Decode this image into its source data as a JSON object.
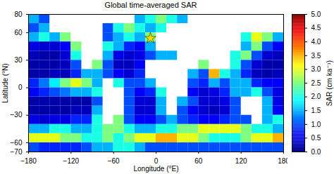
{
  "chart_data": {
    "type": "heatmap",
    "title": "Global time-averaged SAR",
    "x_label": "Longitude (°E)",
    "y_label": "Latitude (°N)",
    "xlim": [
      -180,
      180
    ],
    "ylim": [
      -70,
      80
    ],
    "xticks": [
      -180,
      -120,
      -60,
      0,
      60,
      120,
      180
    ],
    "yticks": [
      -70,
      -60,
      -30,
      0,
      30,
      60,
      80
    ],
    "lon_edges": [
      -180,
      -165,
      -150,
      -135,
      -120,
      -105,
      -90,
      -75,
      -60,
      -45,
      -30,
      -15,
      0,
      15,
      30,
      45,
      60,
      75,
      90,
      105,
      120,
      135,
      150,
      165,
      180
    ],
    "lat_edges": [
      80,
      70,
      60,
      50,
      40,
      30,
      20,
      10,
      0,
      -10,
      -20,
      -30,
      -40,
      -50,
      -60,
      -70
    ],
    "cells": [
      [
        1.5,
        1.0,
        null,
        null,
        null,
        null,
        null,
        null,
        null,
        null,
        1.5,
        2.0,
        2.5,
        2.0,
        1.5,
        null,
        null,
        null,
        null,
        null,
        null,
        null,
        null,
        null
      ],
      [
        1.0,
        1.5,
        null,
        null,
        null,
        null,
        null,
        1.0,
        2.0,
        2.5,
        2.0,
        1.5,
        2.0,
        null,
        null,
        null,
        null,
        null,
        null,
        null,
        null,
        null,
        null,
        null
      ],
      [
        1.5,
        2.0,
        1.5,
        2.5,
        null,
        null,
        null,
        1.0,
        1.5,
        2.0,
        1.5,
        2.5,
        null,
        null,
        null,
        null,
        null,
        null,
        null,
        null,
        2.0,
        3.0,
        2.5,
        1.5
      ],
      [
        0.5,
        0.4,
        0.4,
        0.6,
        2.5,
        null,
        null,
        2.0,
        1.5,
        0.8,
        0.6,
        1.5,
        null,
        null,
        null,
        null,
        null,
        null,
        null,
        null,
        1.5,
        2.5,
        1.0,
        0.6
      ],
      [
        0.3,
        0.2,
        0.2,
        0.4,
        2.0,
        null,
        null,
        1.5,
        0.5,
        0.4,
        0.5,
        1.0,
        1.5,
        1.5,
        null,
        null,
        null,
        null,
        null,
        2.0,
        2.5,
        1.0,
        0.4,
        0.3
      ],
      [
        0.2,
        0.2,
        0.2,
        0.3,
        1.0,
        null,
        2.5,
        1.0,
        0.3,
        0.3,
        0.6,
        null,
        null,
        null,
        null,
        null,
        2.5,
        null,
        null,
        2.0,
        1.0,
        0.4,
        0.2,
        0.2
      ],
      [
        0.2,
        0.2,
        0.3,
        0.3,
        0.8,
        1.5,
        1.5,
        1.0,
        0.6,
        0.4,
        0.8,
        null,
        null,
        null,
        null,
        1.5,
        1.0,
        3.5,
        2.0,
        1.5,
        0.8,
        0.3,
        0.2,
        0.3
      ],
      [
        0.8,
        1.2,
        1.8,
        2.5,
        3.0,
        2.5,
        1.5,
        null,
        2.0,
        1.0,
        1.0,
        1.5,
        null,
        null,
        null,
        1.0,
        0.8,
        1.5,
        1.0,
        1.5,
        1.5,
        0.8,
        0.6,
        0.6
      ],
      [
        0.6,
        0.8,
        1.0,
        1.2,
        1.5,
        1.5,
        2.0,
        null,
        null,
        1.0,
        0.6,
        0.8,
        2.0,
        null,
        null,
        0.6,
        0.4,
        0.5,
        0.8,
        1.5,
        1.5,
        2.0,
        1.0,
        0.5
      ],
      [
        0.2,
        0.2,
        0.2,
        0.2,
        0.2,
        0.2,
        1.0,
        null,
        null,
        1.0,
        0.4,
        0.4,
        1.5,
        null,
        1.5,
        1.0,
        0.4,
        0.4,
        0.5,
        1.0,
        null,
        null,
        1.5,
        0.5
      ],
      [
        0.2,
        0.2,
        0.2,
        0.2,
        0.3,
        0.3,
        1.5,
        null,
        null,
        1.0,
        0.4,
        0.4,
        1.5,
        null,
        1.0,
        0.6,
        0.4,
        0.3,
        0.4,
        1.0,
        null,
        null,
        1.5,
        0.6
      ],
      [
        0.5,
        0.4,
        0.5,
        0.5,
        0.8,
        0.8,
        2.0,
        null,
        2.5,
        1.0,
        0.6,
        0.6,
        1.0,
        1.5,
        1.0,
        0.8,
        0.6,
        0.6,
        0.8,
        1.0,
        1.0,
        null,
        1.5,
        2.0
      ],
      [
        1.5,
        1.5,
        2.0,
        2.0,
        1.5,
        1.5,
        2.0,
        2.5,
        2.5,
        2.0,
        1.5,
        1.5,
        2.0,
        2.0,
        2.5,
        2.5,
        3.0,
        3.0,
        3.0,
        3.0,
        2.5,
        2.0,
        2.0,
        1.5
      ],
      [
        3.0,
        3.0,
        3.0,
        2.5,
        2.5,
        2.0,
        2.0,
        2.5,
        2.0,
        2.5,
        3.0,
        3.0,
        3.5,
        3.5,
        3.0,
        3.0,
        2.5,
        2.0,
        2.0,
        2.0,
        2.5,
        3.0,
        3.0,
        3.5
      ],
      [
        1.0,
        0.8,
        0.8,
        0.8,
        0.8,
        1.0,
        1.5,
        1.5,
        2.0,
        2.0,
        1.5,
        1.0,
        1.0,
        1.0,
        1.0,
        1.0,
        1.0,
        1.0,
        1.0,
        1.0,
        1.0,
        1.0,
        1.0,
        1.0
      ]
    ],
    "colorbar": {
      "label": "SAR (cm ka⁻¹)",
      "lim": [
        0,
        5
      ],
      "ticks": [
        {
          "value": 0,
          "label": "0.0"
        },
        {
          "value": 0.5,
          "label": "0.5"
        },
        {
          "value": 1,
          "label": "1.0"
        },
        {
          "value": 1.5,
          "label": "1.5"
        },
        {
          "value": 2,
          "label": "2.0"
        },
        {
          "value": 2.5,
          "label": "2.5"
        },
        {
          "value": 3,
          "label": "3.0"
        },
        {
          "value": 3.5,
          "label": "3.5"
        },
        {
          "value": 4,
          "label": "4.0"
        },
        {
          "value": 4.5,
          "label": "4.5"
        },
        {
          "value": 5,
          "label": "5.0"
        }
      ]
    },
    "markers": [
      {
        "x": -8,
        "y": 54,
        "marker": "star",
        "color": "#ffd700"
      }
    ]
  }
}
